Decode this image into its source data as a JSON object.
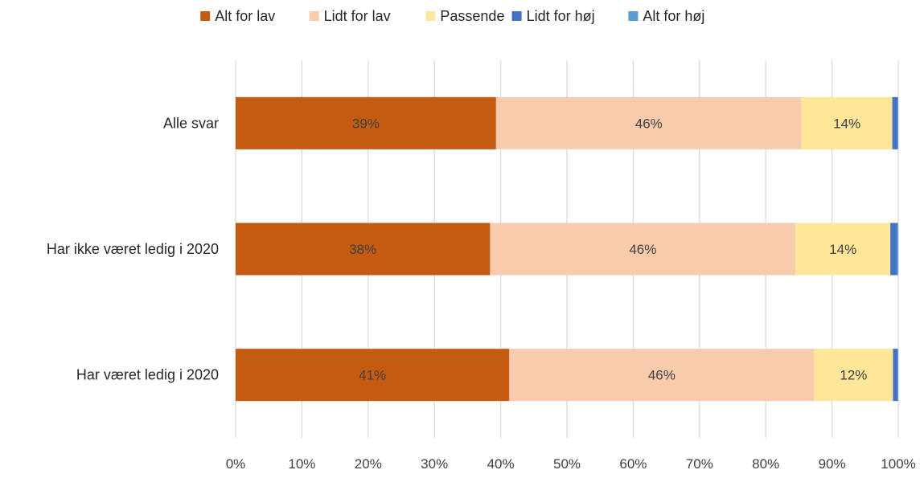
{
  "chart_data": {
    "type": "bar",
    "orientation": "horizontal",
    "stacked": true,
    "normalized": true,
    "categories": [
      "Alle svar",
      "Har ikke været ledig i 2020",
      "Har været ledig i 2020"
    ],
    "series": [
      {
        "name": "Alt for lav",
        "color": "#c55a11",
        "values": [
          39.3,
          38.4,
          41.3
        ],
        "labels": [
          "39%",
          "38%",
          "41%"
        ]
      },
      {
        "name": "Lidt for lav",
        "color": "#f8cbad",
        "values": [
          46.1,
          46.1,
          46.0
        ],
        "labels": [
          "46%",
          "46%",
          "46%"
        ]
      },
      {
        "name": "Passende",
        "color": "#ffe699",
        "values": [
          13.7,
          14.3,
          11.9
        ],
        "labels": [
          "14%",
          "14%",
          "12%"
        ]
      },
      {
        "name": "Lidt for høj",
        "color": "#4472c4",
        "values": [
          0.8,
          1.0,
          0.7
        ],
        "labels": [
          "",
          "",
          ""
        ]
      },
      {
        "name": "Alt for høj",
        "color": "#5b9bd5",
        "values": [
          0.1,
          0.2,
          0.1
        ],
        "labels": [
          "",
          "",
          ""
        ]
      }
    ],
    "xlim": [
      0,
      100
    ],
    "xticks": [
      "0%",
      "10%",
      "20%",
      "30%",
      "40%",
      "50%",
      "60%",
      "70%",
      "80%",
      "90%",
      "100%"
    ],
    "grid": true,
    "legend_position": "top"
  }
}
